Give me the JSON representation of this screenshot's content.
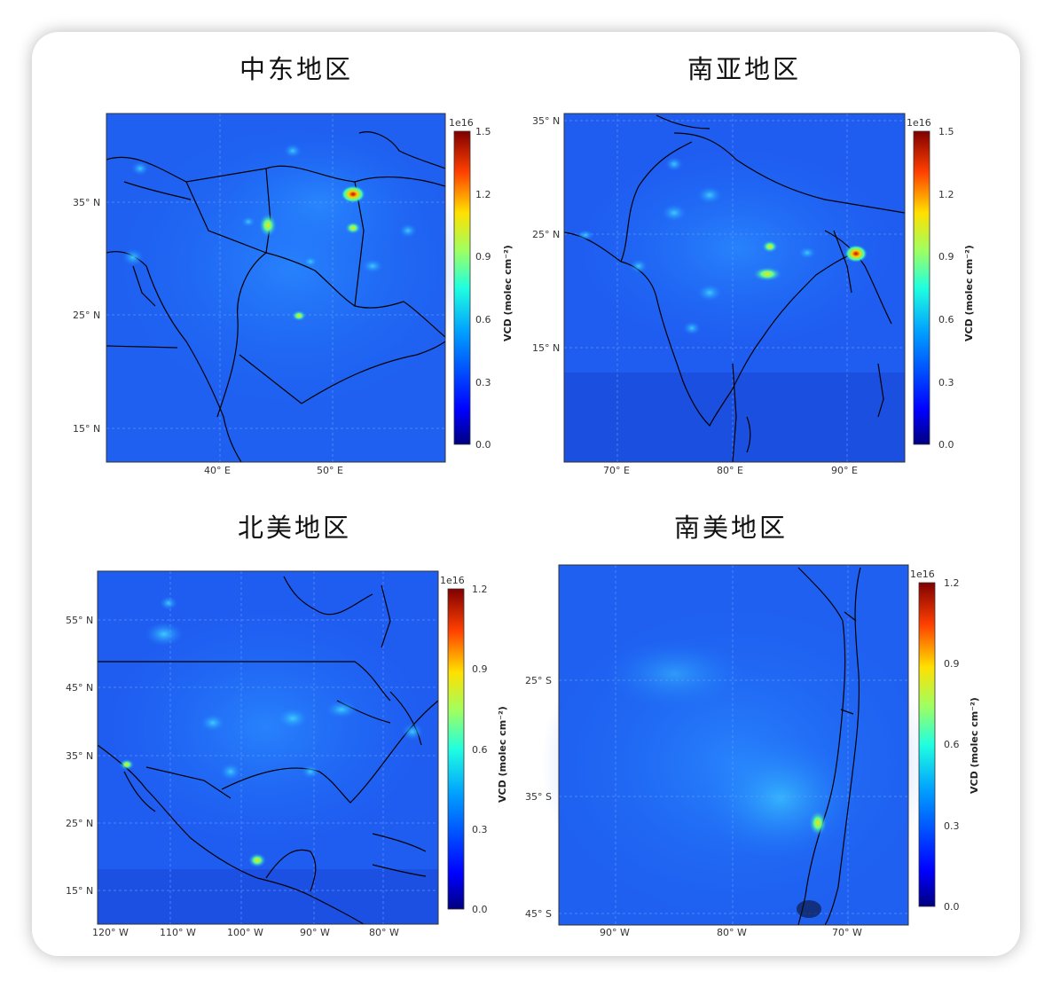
{
  "panels": [
    {
      "title": "中东地区",
      "lat_ticks": [
        "35° N",
        "25° N",
        "15° N"
      ],
      "lon_ticks": [
        "40° E",
        "50° E"
      ],
      "colorbar": {
        "exponent": "1e16",
        "ticks": [
          "1.5",
          "1.2",
          "0.9",
          "0.6",
          "0.3",
          "0.0"
        ],
        "label": "VCD (molec cm⁻²)"
      }
    },
    {
      "title": "南亚地区",
      "lat_ticks": [
        "35° N",
        "25° N",
        "15° N"
      ],
      "lon_ticks": [
        "70° E",
        "80° E",
        "90° E"
      ],
      "colorbar": {
        "exponent": "1e16",
        "ticks": [
          "1.5",
          "1.2",
          "0.9",
          "0.6",
          "0.3",
          "0.0"
        ],
        "label": "VCD (molec cm⁻²)"
      }
    },
    {
      "title": "北美地区",
      "lat_ticks": [
        "55° N",
        "45° N",
        "35° N",
        "25° N",
        "15° N"
      ],
      "lon_ticks": [
        "120° W",
        "110° W",
        "100° W",
        "90° W",
        "80° W"
      ],
      "colorbar": {
        "exponent": "1e16",
        "ticks": [
          "1.2",
          "0.9",
          "0.6",
          "0.3",
          "0.0"
        ],
        "label": "VCD (molec cm⁻²)"
      }
    },
    {
      "title": "南美地区",
      "lat_ticks": [
        "25° S",
        "35° S",
        "45° S"
      ],
      "lon_ticks": [
        "90° W",
        "80° W",
        "70° W"
      ],
      "colorbar": {
        "exponent": "1e16",
        "ticks": [
          "1.2",
          "0.9",
          "0.6",
          "0.3",
          "0.0"
        ],
        "label": "VCD (molec cm⁻²)"
      }
    }
  ],
  "colors": {
    "jet": [
      "#00007f",
      "#0000ff",
      "#007fff",
      "#00ffff",
      "#7fff7f",
      "#ffff00",
      "#ff7f00",
      "#ff0000",
      "#7f0000"
    ],
    "background_field": "#1e5cf0",
    "coastline": "#000000"
  }
}
